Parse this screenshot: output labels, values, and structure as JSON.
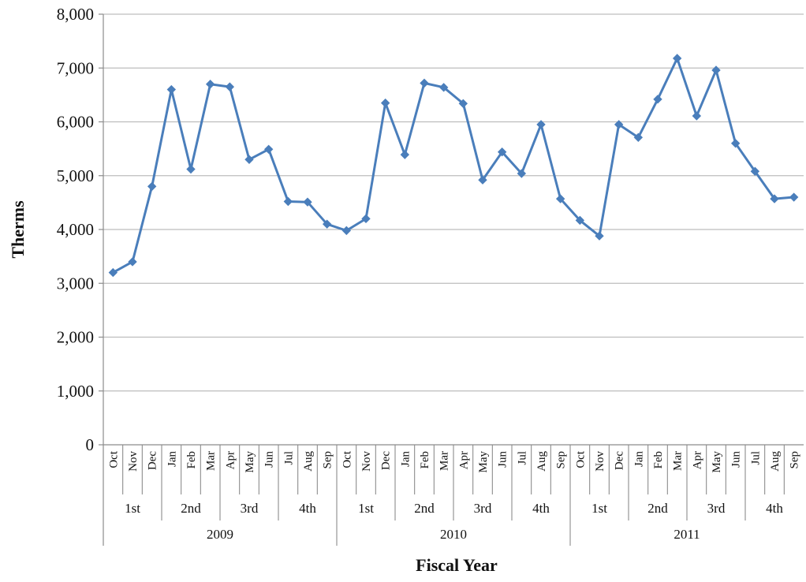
{
  "chart_data": {
    "type": "line",
    "title": "",
    "xlabel": "Fiscal Year",
    "ylabel": "Therms",
    "ylim": [
      0,
      8000
    ],
    "yticks": [
      "0",
      "1,000",
      "2,000",
      "3,000",
      "4,000",
      "5,000",
      "6,000",
      "7,000",
      "8,000"
    ],
    "ytick_values": [
      0,
      1000,
      2000,
      3000,
      4000,
      5000,
      6000,
      7000,
      8000
    ],
    "grid": "horizontal",
    "legend": "none",
    "line_color": "#4a7ebb",
    "years": [
      {
        "label": "2009",
        "quarters": [
          {
            "label": "1st",
            "months": [
              "Oct",
              "Nov",
              "Dec"
            ]
          },
          {
            "label": "2nd",
            "months": [
              "Jan",
              "Feb",
              "Mar"
            ]
          },
          {
            "label": "3rd",
            "months": [
              "Apr",
              "May",
              "Jun"
            ]
          },
          {
            "label": "4th",
            "months": [
              "Jul",
              "Aug",
              "Sep"
            ]
          }
        ]
      },
      {
        "label": "2010",
        "quarters": [
          {
            "label": "1st",
            "months": [
              "Oct",
              "Nov",
              "Dec"
            ]
          },
          {
            "label": "2nd",
            "months": [
              "Jan",
              "Feb",
              "Mar"
            ]
          },
          {
            "label": "3rd",
            "months": [
              "Apr",
              "May",
              "Jun"
            ]
          },
          {
            "label": "4th",
            "months": [
              "Jul",
              "Aug",
              "Sep"
            ]
          }
        ]
      },
      {
        "label": "2011",
        "quarters": [
          {
            "label": "1st",
            "months": [
              "Oct",
              "Nov",
              "Dec"
            ]
          },
          {
            "label": "2nd",
            "months": [
              "Jan",
              "Feb",
              "Mar"
            ]
          },
          {
            "label": "3rd",
            "months": [
              "Apr",
              "May",
              "Jun"
            ]
          },
          {
            "label": "4th",
            "months": [
              "Jul",
              "Aug",
              "Sep"
            ]
          }
        ]
      }
    ],
    "values": [
      3200,
      3400,
      4800,
      6600,
      5120,
      6700,
      6650,
      5300,
      5490,
      4520,
      4510,
      4100,
      3980,
      4200,
      6350,
      5390,
      6720,
      6640,
      6340,
      4920,
      5440,
      5040,
      5950,
      4570,
      4170,
      3880,
      5950,
      5710,
      6420,
      7180,
      6110,
      6960,
      5600,
      5080,
      4570,
      4600
    ]
  }
}
